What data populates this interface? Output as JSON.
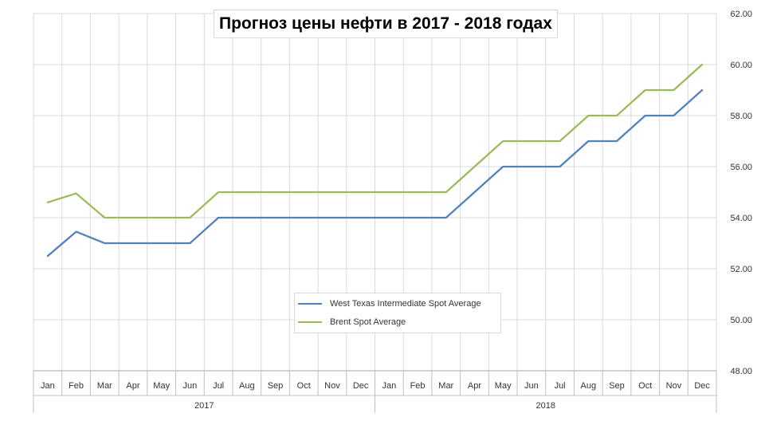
{
  "chart_data": {
    "type": "line",
    "title": "Прогноз цены нефти  в 2017 - 2018 годах",
    "categories": [
      "Jan",
      "Feb",
      "Mar",
      "Apr",
      "May",
      "Jun",
      "Jul",
      "Aug",
      "Sep",
      "Oct",
      "Nov",
      "Dec",
      "Jan",
      "Feb",
      "Mar",
      "Apr",
      "May",
      "Jun",
      "Jul",
      "Aug",
      "Sep",
      "Oct",
      "Nov",
      "Dec"
    ],
    "category_groups": [
      {
        "label": "2017",
        "count": 12
      },
      {
        "label": "2018",
        "count": 12
      }
    ],
    "series": [
      {
        "name": "West Texas Intermediate Spot Average",
        "color": "#4f81bd",
        "values": [
          52.5,
          53.45,
          53,
          53,
          53,
          53,
          54,
          54,
          54,
          54,
          54,
          54,
          54,
          54,
          54,
          55,
          56,
          56,
          56,
          57,
          57,
          58,
          58,
          59
        ]
      },
      {
        "name": "Brent Spot Average",
        "color": "#9bbb59",
        "values": [
          54.6,
          54.95,
          54,
          54,
          54,
          54,
          55,
          55,
          55,
          55,
          55,
          55,
          55,
          55,
          55,
          56,
          57,
          57,
          57,
          58,
          58,
          59,
          59,
          60
        ]
      }
    ],
    "y_ticks": [
      "48.00",
      "50.00",
      "52.00",
      "54.00",
      "56.00",
      "58.00",
      "60.00",
      "62.00"
    ],
    "ylim": [
      48,
      62
    ],
    "y_axis_side": "right",
    "grid": true,
    "legend_position": "bottom-center"
  }
}
